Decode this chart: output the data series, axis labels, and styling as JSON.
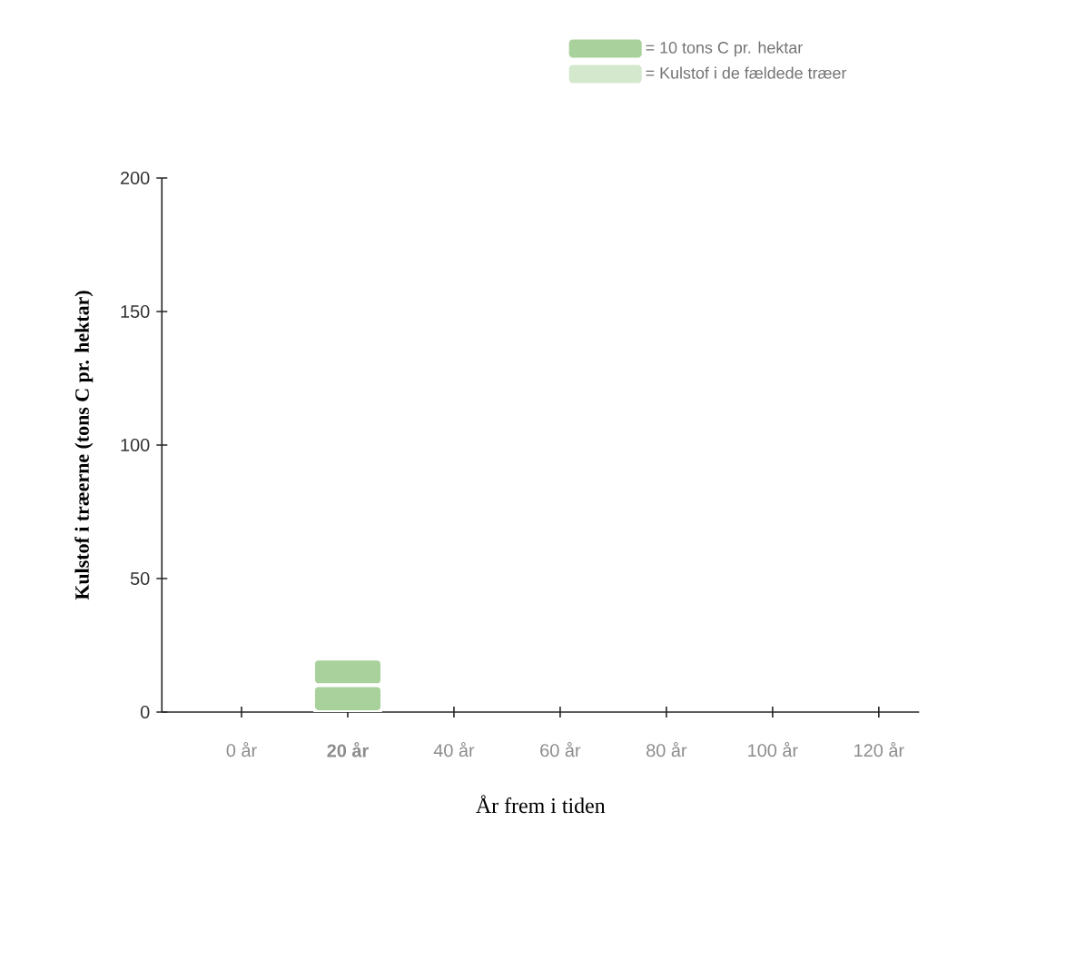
{
  "chart_data": {
    "type": "bar",
    "stacked": true,
    "xlabel": "År frem i tiden",
    "ylabel": "Kulstof i træerne (tons C pr. hektar)",
    "categories": [
      "0 år",
      "**20 år**",
      "40 år",
      "60 år",
      "80 år",
      "100 år",
      "120 år"
    ],
    "series": [
      {
        "name": "= 10 tons C pr. hektar",
        "color": "#a9d19c",
        "values": [
          null,
          10,
          null,
          null,
          null,
          null,
          null
        ]
      },
      {
        "color": "#a9d19c",
        "values": [
          null,
          10,
          null,
          null,
          null,
          null,
          null
        ]
      },
      {
        "name": "= Kulstof i de fældede træer",
        "color": "#d3e8cc",
        "values": [
          null,
          null,
          null,
          null,
          null,
          null,
          null
        ]
      }
    ],
    "ylim": [
      0,
      200
    ],
    "yticks": [
      0,
      50,
      100,
      150,
      200
    ],
    "legend": "top right"
  }
}
